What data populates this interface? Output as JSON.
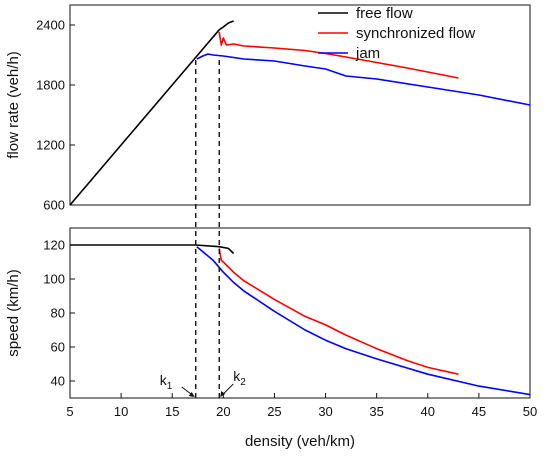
{
  "chart_data": [
    {
      "type": "line",
      "panel": "top",
      "title": "",
      "xlabel": "",
      "ylabel": "flow rate (veh/h)",
      "xlim": [
        5,
        50
      ],
      "ylim": [
        600,
        2600
      ],
      "yticks": [
        600,
        1200,
        1800,
        2400
      ],
      "legend": "top-right",
      "series": [
        {
          "name": "free flow",
          "color": "#000000",
          "x": [
            5,
            10,
            15,
            17.3,
            19.6,
            20,
            20.5,
            21
          ],
          "y": [
            600,
            1200,
            1800,
            2076,
            2352,
            2380,
            2420,
            2440
          ]
        },
        {
          "name": "synchronized flow",
          "color": "#ff0000",
          "x": [
            19.6,
            19.8,
            20,
            20.3,
            21,
            22,
            25,
            28,
            30,
            32,
            35,
            38,
            40,
            43
          ],
          "y": [
            2330,
            2200,
            2270,
            2200,
            2210,
            2190,
            2170,
            2145,
            2115,
            2080,
            2025,
            1970,
            1930,
            1870
          ]
        },
        {
          "name": "jam",
          "color": "#0000ff",
          "x": [
            17.4,
            18,
            18.5,
            19,
            20,
            22,
            25,
            28,
            30,
            32,
            35,
            40,
            45,
            50
          ],
          "y": [
            2060,
            2090,
            2110,
            2100,
            2090,
            2060,
            2040,
            1990,
            1960,
            1890,
            1860,
            1780,
            1700,
            1600
          ]
        }
      ]
    },
    {
      "type": "line",
      "panel": "bottom",
      "title": "",
      "xlabel": "density (veh/km)",
      "ylabel": "speed (km/h)",
      "xlim": [
        5,
        50
      ],
      "ylim": [
        30,
        130
      ],
      "xticks": [
        5,
        10,
        15,
        20,
        25,
        30,
        35,
        40,
        45,
        50
      ],
      "yticks": [
        40,
        60,
        80,
        100,
        120
      ],
      "series": [
        {
          "name": "free flow",
          "color": "#000000",
          "x": [
            5,
            10,
            15,
            17.3,
            19.6,
            20.5,
            21
          ],
          "y": [
            120,
            120,
            120,
            120,
            119,
            118,
            115
          ]
        },
        {
          "name": "synchronized flow",
          "color": "#ff0000",
          "x": [
            19.6,
            19.8,
            20,
            21,
            22,
            25,
            28,
            30,
            32,
            35,
            38,
            40,
            43
          ],
          "y": [
            118,
            111,
            110,
            104,
            99,
            88,
            78,
            73,
            67,
            59,
            52,
            48,
            44
          ]
        },
        {
          "name": "jam",
          "color": "#0000ff",
          "x": [
            17.4,
            18,
            19,
            20,
            21,
            22,
            25,
            28,
            30,
            32,
            35,
            40,
            45,
            50
          ],
          "y": [
            119,
            116,
            111,
            104,
            98,
            93,
            81,
            70,
            64,
            59,
            53,
            44,
            37,
            32
          ]
        }
      ]
    }
  ],
  "annotations": {
    "k1": {
      "label": "k",
      "sub": "1",
      "x": 17.3
    },
    "k2": {
      "label": "k",
      "sub": "2",
      "x": 19.6
    }
  }
}
